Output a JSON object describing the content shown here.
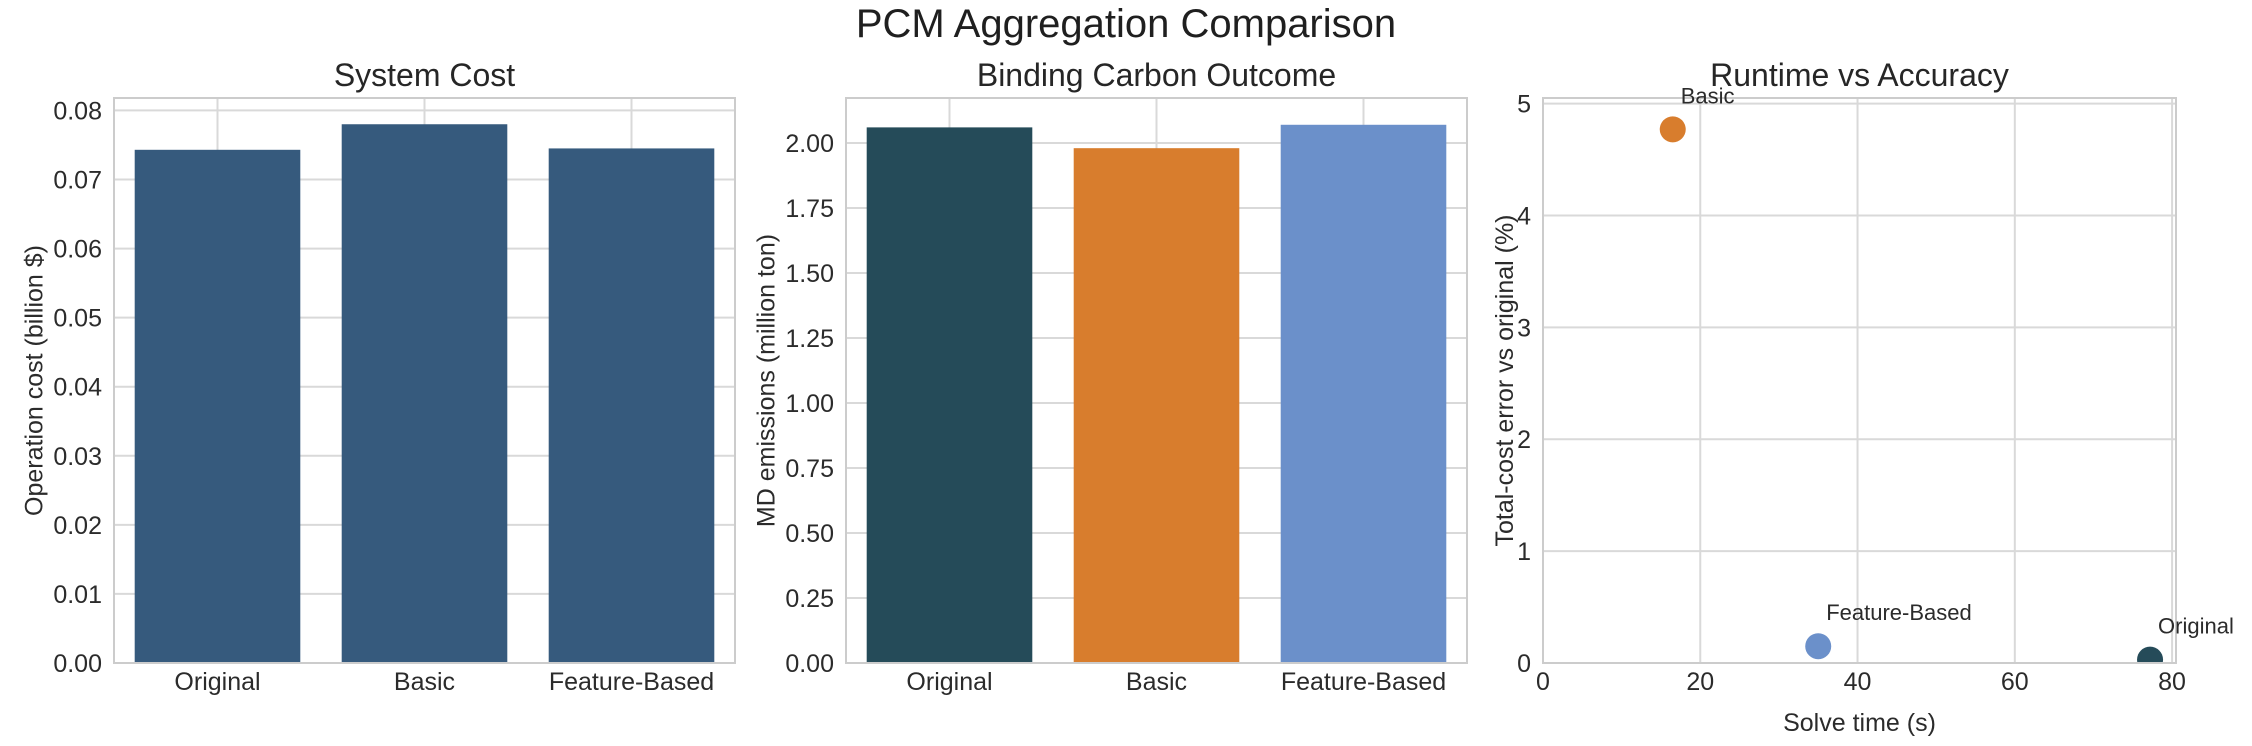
{
  "figure": {
    "title": "PCM Aggregation Comparison",
    "background": "#ffffff",
    "title_color": "#1f1f1f",
    "text_color": "#2b2b2b",
    "grid_color": "#d9d9d9",
    "spine_color": "#cccccc"
  },
  "palette": {
    "original": "#254b59",
    "basic": "#d87d2d",
    "feature_based": "#6b90ca",
    "system_cost_bar": "#365a7d"
  },
  "chart_data": [
    {
      "type": "bar",
      "title": "System Cost",
      "xlabel": "",
      "ylabel": "Operation cost (billion $)",
      "categories": [
        "Original",
        "Basic",
        "Feature-Based"
      ],
      "values": [
        0.0743,
        0.078,
        0.0745
      ],
      "bar_colors": [
        "#365a7d",
        "#365a7d",
        "#365a7d"
      ],
      "ylim": [
        0,
        0.0818
      ],
      "yticks": [
        0,
        0.01,
        0.02,
        0.03,
        0.04,
        0.05,
        0.06,
        0.07,
        0.08
      ],
      "ytick_labels": [
        "0.00",
        "0.01",
        "0.02",
        "0.03",
        "0.04",
        "0.05",
        "0.06",
        "0.07",
        "0.08"
      ],
      "grid": true,
      "legend": "none"
    },
    {
      "type": "bar",
      "title": "Binding Carbon Outcome",
      "xlabel": "",
      "ylabel": "MD emissions (million ton)",
      "categories": [
        "Original",
        "Basic",
        "Feature-Based"
      ],
      "values": [
        2.06,
        1.98,
        2.07
      ],
      "bar_colors": [
        "#254b59",
        "#d87d2d",
        "#6b90ca"
      ],
      "ylim": [
        0,
        2.173
      ],
      "yticks": [
        0,
        0.25,
        0.5,
        0.75,
        1.0,
        1.25,
        1.5,
        1.75,
        2.0
      ],
      "ytick_labels": [
        "0.00",
        "0.25",
        "0.50",
        "0.75",
        "1.00",
        "1.25",
        "1.50",
        "1.75",
        "2.00"
      ],
      "grid": true,
      "legend": "none"
    },
    {
      "type": "scatter",
      "title": "Runtime vs Accuracy",
      "xlabel": "Solve time (s)",
      "ylabel": "Total-cost error vs original (%)",
      "points": [
        {
          "label": "Basic",
          "x": 16.5,
          "y": 4.77,
          "color": "#d87d2d"
        },
        {
          "label": "Feature-Based",
          "x": 35.0,
          "y": 0.15,
          "color": "#6b90ca"
        },
        {
          "label": "Original",
          "x": 77.2,
          "y": 0.03,
          "color": "#254b59"
        }
      ],
      "xlim": [
        0,
        80.5
      ],
      "ylim": [
        0,
        5.05
      ],
      "xticks": [
        0,
        20,
        40,
        60,
        80
      ],
      "xtick_labels": [
        "0",
        "20",
        "40",
        "60",
        "80"
      ],
      "yticks": [
        0,
        1,
        2,
        3,
        4,
        5
      ],
      "ytick_labels": [
        "0",
        "1",
        "2",
        "3",
        "4",
        "5"
      ],
      "grid": true,
      "legend": "none"
    }
  ]
}
